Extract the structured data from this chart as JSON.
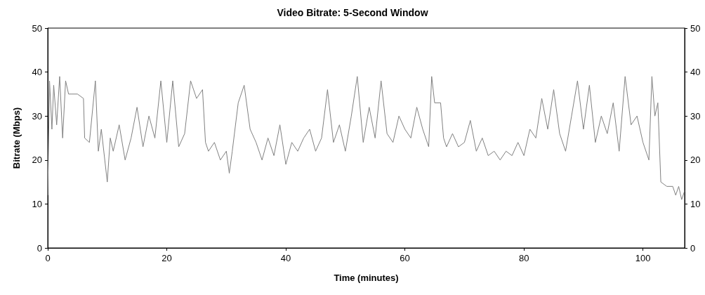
{
  "chart_data": {
    "type": "line",
    "title": "Video Bitrate: 5-Second Window",
    "xlabel": "Time (minutes)",
    "ylabel": "Bitrate (Mbps)",
    "xlim": [
      0,
      107
    ],
    "xticks": [
      0,
      20,
      40,
      60,
      80,
      100
    ],
    "ylim": [
      0,
      50
    ],
    "yticks": [
      0,
      10,
      20,
      30,
      40,
      50
    ],
    "y2lim": [
      0,
      50
    ],
    "y2ticks": [
      0,
      10,
      20,
      30,
      40,
      50
    ],
    "grid": false,
    "marker": "none",
    "line_style": "solid",
    "series": [
      {
        "color": "#808080",
        "x": [
          0,
          0.3,
          0.7,
          1,
          1.5,
          2,
          2.5,
          3,
          3.5,
          4,
          5,
          6,
          6.2,
          7,
          8,
          8.5,
          9,
          10,
          10.5,
          11,
          12,
          13,
          14,
          15,
          16,
          17,
          18,
          19,
          20,
          21,
          22,
          23,
          24,
          25,
          26,
          26.5,
          27,
          28,
          29,
          30,
          30.5,
          31,
          32,
          33,
          34,
          35,
          36,
          37,
          38,
          39,
          40,
          41,
          42,
          43,
          44,
          45,
          46,
          47,
          48,
          49,
          50,
          51,
          52,
          53,
          54,
          55,
          56,
          57,
          58,
          59,
          60,
          61,
          62,
          63,
          64,
          64.5,
          65,
          66,
          66.5,
          67,
          68,
          69,
          70,
          71,
          72,
          73,
          74,
          75,
          76,
          77,
          78,
          79,
          80,
          81,
          82,
          83,
          84,
          85,
          86,
          87,
          88,
          89,
          90,
          91,
          92,
          93,
          94,
          95,
          96,
          97,
          98,
          99,
          100,
          101,
          101.5,
          102,
          102.5,
          103,
          104,
          105,
          105.5,
          106,
          106.5,
          107
        ],
        "values": [
          12,
          38,
          27,
          37,
          28,
          39,
          25,
          38,
          35,
          35,
          35,
          34,
          25,
          24,
          38,
          22,
          27,
          15,
          25,
          22,
          28,
          20,
          25,
          32,
          23,
          30,
          25,
          38,
          24,
          38,
          23,
          26,
          38,
          34,
          36,
          24,
          22,
          24,
          20,
          22,
          17,
          22,
          33,
          37,
          27,
          24,
          20,
          25,
          21,
          28,
          19,
          24,
          22,
          25,
          27,
          22,
          25,
          36,
          24,
          28,
          22,
          30,
          39,
          24,
          32,
          25,
          38,
          26,
          24,
          30,
          27,
          25,
          32,
          27,
          23,
          39,
          33,
          33,
          25,
          23,
          26,
          23,
          24,
          29,
          22,
          25,
          21,
          22,
          20,
          22,
          21,
          24,
          21,
          27,
          25,
          34,
          27,
          36,
          26,
          22,
          30,
          38,
          27,
          37,
          24,
          30,
          26,
          33,
          22,
          39,
          28,
          30,
          24,
          20,
          39,
          30,
          33,
          15,
          14,
          14,
          12,
          14,
          11,
          13
        ]
      }
    ]
  }
}
